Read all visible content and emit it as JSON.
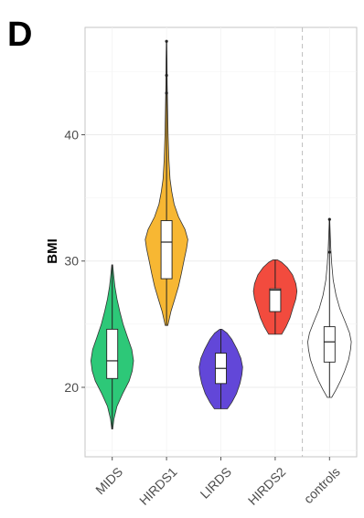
{
  "panel_label": "D",
  "chart_data": {
    "type": "violin",
    "title": "",
    "xlabel": "",
    "ylabel": "BMI",
    "ylim": [
      14.5,
      48.5
    ],
    "yticks": [
      20,
      30,
      40
    ],
    "grid": true,
    "legend": "none",
    "categories": [
      "MIDS",
      "HIRDS1",
      "LIRDS",
      "HIRDS2",
      "controls"
    ],
    "colors": [
      "#2dc878",
      "#f7b733",
      "#6247d8",
      "#f24b3e",
      "#ffffff"
    ],
    "separator_after_index": 3,
    "groups": [
      {
        "name": "MIDS",
        "min": 16.7,
        "q1": 20.7,
        "median": 22.1,
        "q3": 24.6,
        "max": 29.7,
        "outliers": [],
        "violin_profile": [
          [
            16.7,
            0.02
          ],
          [
            17.5,
            0.08
          ],
          [
            18.5,
            0.22
          ],
          [
            19.5,
            0.48
          ],
          [
            20.5,
            0.78
          ],
          [
            21.3,
            0.92
          ],
          [
            22.1,
            0.98
          ],
          [
            23.0,
            0.9
          ],
          [
            24.0,
            0.7
          ],
          [
            25.0,
            0.5
          ],
          [
            26.0,
            0.35
          ],
          [
            27.0,
            0.22
          ],
          [
            28.0,
            0.12
          ],
          [
            29.0,
            0.06
          ],
          [
            29.7,
            0.02
          ]
        ]
      },
      {
        "name": "HIRDS1",
        "min": 24.9,
        "q1": 28.6,
        "median": 31.5,
        "q3": 33.2,
        "max": 47.4,
        "outliers": [
          47.4,
          44.7,
          43.3
        ],
        "violin_profile": [
          [
            24.9,
            0.06
          ],
          [
            26.0,
            0.2
          ],
          [
            27.0,
            0.38
          ],
          [
            28.0,
            0.55
          ],
          [
            29.0,
            0.68
          ],
          [
            30.0,
            0.8
          ],
          [
            31.0,
            0.92
          ],
          [
            31.7,
            0.98
          ],
          [
            32.5,
            0.85
          ],
          [
            33.5,
            0.55
          ],
          [
            34.5,
            0.35
          ],
          [
            35.5,
            0.24
          ],
          [
            36.5,
            0.16
          ],
          [
            38.0,
            0.11
          ],
          [
            40.0,
            0.07
          ],
          [
            42.0,
            0.05
          ],
          [
            44.0,
            0.03
          ],
          [
            46.0,
            0.02
          ],
          [
            47.4,
            0.01
          ]
        ]
      },
      {
        "name": "LIRDS",
        "min": 18.3,
        "q1": 20.3,
        "median": 21.5,
        "q3": 22.7,
        "max": 24.6,
        "outliers": [],
        "violin_profile": [
          [
            18.3,
            0.3
          ],
          [
            18.8,
            0.5
          ],
          [
            19.5,
            0.72
          ],
          [
            20.3,
            0.88
          ],
          [
            21.0,
            0.97
          ],
          [
            21.6,
            1.0
          ],
          [
            22.3,
            0.92
          ],
          [
            23.0,
            0.75
          ],
          [
            23.8,
            0.5
          ],
          [
            24.3,
            0.28
          ],
          [
            24.6,
            0.05
          ]
        ]
      },
      {
        "name": "HIRDS2",
        "min": 24.2,
        "q1": 26.0,
        "median": 27.7,
        "q3": 27.8,
        "max": 30.1,
        "outliers": [],
        "violin_profile": [
          [
            24.2,
            0.3
          ],
          [
            24.8,
            0.5
          ],
          [
            25.5,
            0.68
          ],
          [
            26.3,
            0.82
          ],
          [
            27.0,
            0.95
          ],
          [
            27.6,
            1.0
          ],
          [
            28.2,
            0.95
          ],
          [
            28.9,
            0.8
          ],
          [
            29.5,
            0.55
          ],
          [
            29.9,
            0.3
          ],
          [
            30.1,
            0.1
          ]
        ]
      },
      {
        "name": "controls",
        "min": 19.2,
        "q1": 22.0,
        "median": 23.6,
        "q3": 24.8,
        "max": 33.3,
        "outliers": [
          33.3,
          30.7
        ],
        "violin_profile": [
          [
            19.2,
            0.1
          ],
          [
            19.8,
            0.3
          ],
          [
            20.5,
            0.5
          ],
          [
            21.3,
            0.7
          ],
          [
            22.2,
            0.88
          ],
          [
            23.0,
            0.97
          ],
          [
            23.6,
            1.0
          ],
          [
            24.3,
            0.92
          ],
          [
            25.2,
            0.72
          ],
          [
            26.2,
            0.48
          ],
          [
            27.3,
            0.3
          ],
          [
            28.5,
            0.17
          ],
          [
            29.8,
            0.1
          ],
          [
            31.0,
            0.06
          ],
          [
            32.3,
            0.03
          ],
          [
            33.3,
            0.01
          ]
        ]
      }
    ]
  }
}
